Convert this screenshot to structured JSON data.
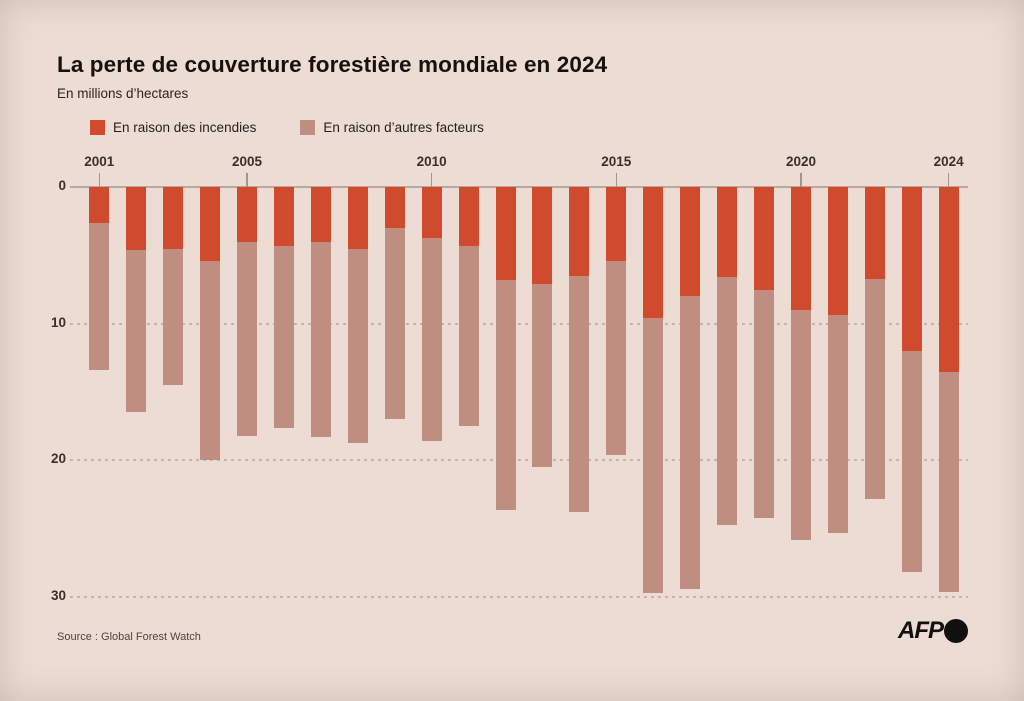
{
  "header": {
    "title": "La perte de couverture forestière mondiale en 2024",
    "subtitle": "En millions d’hectares"
  },
  "legend": {
    "items": [
      {
        "label": "En raison des incendies",
        "color": "#d04a2d"
      },
      {
        "label": "En raison d’autres facteurs",
        "color": "#c08e81"
      }
    ]
  },
  "chart_data": {
    "type": "bar",
    "stacked": true,
    "orientation": "vertical-inverted-from-zero",
    "title": "La perte de couverture forestière mondiale en 2024",
    "ylabel": "En millions d’hectares",
    "categories": [
      2001,
      2002,
      2003,
      2004,
      2005,
      2006,
      2007,
      2008,
      2009,
      2010,
      2011,
      2012,
      2013,
      2014,
      2015,
      2016,
      2017,
      2018,
      2019,
      2020,
      2021,
      2022,
      2023,
      2024
    ],
    "series": [
      {
        "name": "En raison des incendies",
        "color": "#d04a2d",
        "values": [
          2.6,
          4.6,
          4.5,
          5.4,
          4.0,
          4.3,
          4.0,
          4.5,
          3.0,
          3.7,
          4.3,
          6.8,
          7.1,
          6.5,
          5.4,
          9.6,
          8.0,
          6.6,
          7.5,
          9.0,
          9.4,
          6.7,
          12.0,
          13.5
        ]
      },
      {
        "name": "En raison d’autres facteurs",
        "color": "#c08e81",
        "values": [
          10.8,
          11.9,
          10.0,
          14.6,
          14.2,
          13.3,
          14.3,
          14.2,
          14.0,
          14.9,
          13.2,
          16.8,
          13.4,
          17.3,
          14.2,
          20.1,
          21.4,
          18.1,
          16.7,
          16.8,
          15.9,
          16.1,
          16.2,
          16.1
        ]
      }
    ],
    "totals": [
      13.4,
      16.5,
      14.5,
      20.0,
      18.2,
      17.6,
      18.3,
      18.7,
      17.0,
      18.6,
      17.5,
      23.6,
      20.5,
      23.8,
      19.6,
      29.7,
      29.4,
      24.7,
      24.2,
      25.8,
      25.3,
      22.8,
      28.2,
      29.6
    ],
    "ylim": [
      0,
      30
    ],
    "y_ticks": [
      0,
      10,
      20,
      30
    ],
    "x_ticks": [
      2001,
      2005,
      2010,
      2015,
      2020,
      2024
    ],
    "grid": "dotted-horizontal",
    "legend_position": "top-left"
  },
  "footer": {
    "source": "Source : Global Forest Watch",
    "logo_text": "AFP"
  },
  "colors": {
    "background": "#eddcd4",
    "fires": "#d04a2d",
    "others": "#c08e81",
    "zero_axis": "#b7a8a1",
    "gridline": "#c5b2a9",
    "title_text": "#17110e",
    "axis_text": "#39302a"
  }
}
